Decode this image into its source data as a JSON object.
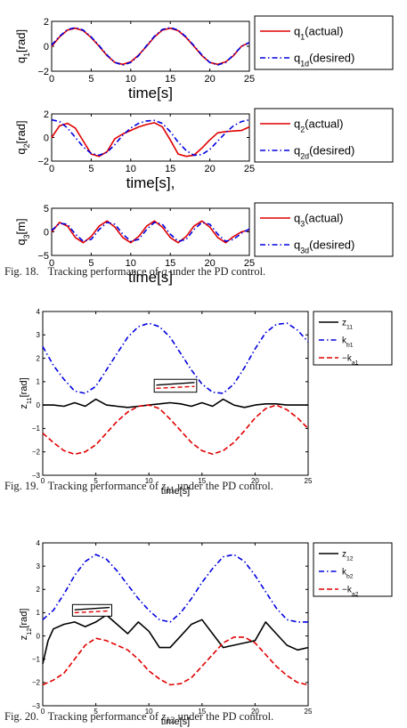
{
  "captions": {
    "fig18": {
      "label": "Fig. 18.",
      "pre": "Tracking performance of ",
      "var": "q",
      "sub": "",
      "post": " under the PD control."
    },
    "fig19": {
      "label": "Fig. 19.",
      "pre": "Tracking performance of ",
      "var": "z",
      "sub": "11",
      "post": " under the PD control."
    },
    "fig20": {
      "label": "Fig. 20.",
      "pre": "Tracking performance of ",
      "var": "z",
      "sub": "12",
      "post": " under the PD control."
    }
  },
  "chart_data": [
    {
      "id": "q1",
      "type": "line",
      "xlabel": "time[s]",
      "ylabel": {
        "base": "q",
        "sub": "1",
        "unit": "[rad]"
      },
      "xlim": [
        0,
        25
      ],
      "ylim": [
        -2,
        2
      ],
      "xticks": [
        "0",
        "5",
        "10",
        "15",
        "20",
        "25"
      ],
      "yticks": [
        "−2",
        "0",
        "2"
      ],
      "series": [
        {
          "name": {
            "base": "q",
            "sub": "1",
            "rest": "(actual)"
          },
          "color": "#e00000",
          "dash": "solid",
          "x": [
            0,
            1,
            2,
            3,
            4,
            5,
            6,
            7,
            8,
            9,
            10,
            11,
            12,
            13,
            14,
            15,
            16,
            17,
            18,
            19,
            20,
            21,
            22,
            23,
            24,
            25
          ],
          "y": [
            0,
            0.75,
            1.3,
            1.45,
            1.25,
            0.7,
            0,
            -0.75,
            -1.3,
            -1.45,
            -1.25,
            -0.7,
            0,
            0.75,
            1.3,
            1.45,
            1.25,
            0.7,
            0,
            -0.75,
            -1.3,
            -1.45,
            -1.25,
            -0.75,
            0,
            0.3
          ]
        },
        {
          "name": {
            "base": "q",
            "sub": "1d",
            "rest": "(desired)"
          },
          "color": "#0000e0",
          "dash": "dashdot",
          "x": [
            0,
            1,
            2,
            3,
            4,
            5,
            6,
            7,
            8,
            9,
            10,
            11,
            12,
            13,
            14,
            15,
            16,
            17,
            18,
            19,
            20,
            21,
            22,
            23,
            24,
            25
          ],
          "y": [
            0.1,
            0.8,
            1.35,
            1.5,
            1.3,
            0.75,
            0.05,
            -0.7,
            -1.3,
            -1.5,
            -1.3,
            -0.75,
            0.05,
            0.8,
            1.35,
            1.5,
            1.3,
            0.75,
            0.05,
            -0.7,
            -1.3,
            -1.5,
            -1.3,
            -0.7,
            0,
            0.3
          ]
        }
      ]
    },
    {
      "id": "q2",
      "type": "line",
      "xlabel": "time[s],",
      "ylabel": {
        "base": "q",
        "sub": "2",
        "unit": "[rad]"
      },
      "xlim": [
        0,
        25
      ],
      "ylim": [
        -2,
        2
      ],
      "xticks": [
        "0",
        "5",
        "10",
        "15",
        "20",
        "25"
      ],
      "yticks": [
        "−2",
        "0",
        "2"
      ],
      "series": [
        {
          "name": {
            "base": "q",
            "sub": "2",
            "rest": "(actual)"
          },
          "color": "#e00000",
          "dash": "solid",
          "x": [
            0,
            1,
            2,
            3,
            4,
            5,
            6,
            7,
            8,
            9,
            10,
            11,
            12,
            13,
            14,
            15,
            16,
            17,
            18,
            19,
            20,
            21,
            22,
            23,
            24,
            25
          ],
          "y": [
            0,
            1.0,
            1.2,
            0.8,
            -0.3,
            -1.4,
            -1.6,
            -1.2,
            -0.1,
            0.3,
            0.6,
            0.9,
            1.1,
            1.25,
            0.9,
            -0.2,
            -1.4,
            -1.6,
            -1.5,
            -0.9,
            -0.2,
            0.4,
            0.5,
            0.55,
            0.6,
            0.9
          ]
        },
        {
          "name": {
            "base": "q",
            "sub": "2d",
            "rest": "(desired)"
          },
          "color": "#0000e0",
          "dash": "dashdot",
          "x": [
            0,
            1,
            2,
            3,
            4,
            5,
            6,
            7,
            8,
            9,
            10,
            11,
            12,
            13,
            14,
            15,
            16,
            17,
            18,
            19,
            20,
            21,
            22,
            23,
            24,
            25
          ],
          "y": [
            1.5,
            1.35,
            0.8,
            0,
            -0.8,
            -1.35,
            -1.5,
            -1.25,
            -0.6,
            0.2,
            0.8,
            1.2,
            1.4,
            1.45,
            1.2,
            0.5,
            -0.4,
            -1.1,
            -1.5,
            -1.45,
            -1.0,
            -0.3,
            0.4,
            1.0,
            1.35,
            1.5
          ]
        }
      ]
    },
    {
      "id": "q3",
      "type": "line",
      "xlabel": "time[s]",
      "ylabel": {
        "base": "q",
        "sub": "3",
        "unit": "[m]"
      },
      "xlim": [
        0,
        25
      ],
      "ylim": [
        -5,
        5
      ],
      "xticks": [
        "0",
        "5",
        "10",
        "15",
        "20",
        "25"
      ],
      "yticks": [
        "−5",
        "0",
        "5"
      ],
      "series": [
        {
          "name": {
            "base": "q",
            "sub": "3",
            "rest": "(actual)"
          },
          "color": "#e00000",
          "dash": "solid",
          "x": [
            0,
            1,
            2,
            3,
            4,
            5,
            6,
            7,
            8,
            9,
            10,
            11,
            12,
            13,
            14,
            15,
            16,
            17,
            18,
            19,
            20,
            21,
            22,
            23,
            24,
            25
          ],
          "y": [
            0,
            2.0,
            1.2,
            -1.2,
            -2.3,
            -1.0,
            1.2,
            2.3,
            1.0,
            -1.2,
            -2.3,
            -1.0,
            1.2,
            2.3,
            1.0,
            -1.2,
            -2.3,
            -1.0,
            1.2,
            2.3,
            1.0,
            -1.2,
            -2.3,
            -1.0,
            0,
            0.4
          ]
        },
        {
          "name": {
            "base": "q",
            "sub": "3d",
            "rest": "(desired)"
          },
          "color": "#0000e0",
          "dash": "dashdot",
          "x": [
            0,
            1,
            2,
            3,
            4,
            5,
            6,
            7,
            8,
            9,
            10,
            11,
            12,
            13,
            14,
            15,
            16,
            17,
            18,
            19,
            20,
            21,
            22,
            23,
            24,
            25
          ],
          "y": [
            0.3,
            1.8,
            1.6,
            -0.5,
            -2.0,
            -1.6,
            0.5,
            2.0,
            1.6,
            -0.5,
            -2.0,
            -1.6,
            0.5,
            2.0,
            1.6,
            -0.5,
            -2.0,
            -1.6,
            0.5,
            2.0,
            1.6,
            -0.5,
            -2.0,
            -1.6,
            -0.3,
            0.6
          ]
        }
      ]
    },
    {
      "id": "z11",
      "type": "line",
      "xlabel": "time[s]",
      "ylabel": {
        "base": "z",
        "sub": "11",
        "unit": "[rad]"
      },
      "xlim": [
        0,
        25
      ],
      "ylim": [
        -3,
        4
      ],
      "xticks": [
        "0",
        "5",
        "10",
        "15",
        "20",
        "25"
      ],
      "yticks": [
        "−3",
        "−2",
        "−1",
        "0",
        "1",
        "2",
        "3",
        "4"
      ],
      "series": [
        {
          "name": {
            "base": "z",
            "sub": "11",
            "rest": ""
          },
          "color": "#000000",
          "dash": "solid",
          "x": [
            0,
            1,
            2,
            3,
            4,
            5,
            6,
            7,
            8,
            9,
            10,
            11,
            12,
            13,
            14,
            15,
            16,
            17,
            18,
            19,
            20,
            21,
            22,
            23,
            24,
            25
          ],
          "y": [
            0,
            0,
            -0.05,
            0.1,
            -0.05,
            0.25,
            0,
            -0.05,
            -0.1,
            -0.05,
            0,
            0.05,
            0.1,
            0.05,
            -0.05,
            0.1,
            -0.05,
            0.25,
            0,
            -0.1,
            0,
            0.05,
            0.05,
            0,
            0,
            0
          ]
        },
        {
          "name": {
            "base": "k",
            "sub": "b1",
            "rest": ""
          },
          "color": "#0000e0",
          "dash": "dashdot",
          "x": [
            0,
            1,
            2,
            3,
            4,
            5,
            6,
            7,
            8,
            9,
            10,
            11,
            12,
            13,
            14,
            15,
            16,
            17,
            18,
            19,
            20,
            21,
            22,
            23,
            24,
            25
          ],
          "y": [
            2.5,
            1.7,
            1.1,
            0.6,
            0.5,
            0.8,
            1.5,
            2.2,
            2.9,
            3.35,
            3.5,
            3.35,
            2.9,
            2.2,
            1.5,
            0.9,
            0.55,
            0.5,
            0.9,
            1.6,
            2.4,
            3.1,
            3.45,
            3.5,
            3.2,
            2.7
          ]
        },
        {
          "name": {
            "base": "−k",
            "sub": "a1",
            "rest": ""
          },
          "color": "#e00000",
          "dash": "dash",
          "x": [
            0,
            1,
            2,
            3,
            4,
            5,
            6,
            7,
            8,
            9,
            10,
            11,
            12,
            13,
            14,
            15,
            16,
            17,
            18,
            19,
            20,
            21,
            22,
            23,
            24,
            25
          ],
          "y": [
            -1.2,
            -1.6,
            -1.95,
            -2.1,
            -2.0,
            -1.7,
            -1.2,
            -0.7,
            -0.3,
            -0.05,
            0,
            -0.15,
            -0.6,
            -1.1,
            -1.6,
            -1.95,
            -2.1,
            -1.95,
            -1.6,
            -1.1,
            -0.55,
            -0.15,
            0,
            -0.2,
            -0.55,
            -1.0
          ]
        }
      ]
    },
    {
      "id": "z12",
      "type": "line",
      "xlabel": "time[s]",
      "ylabel": {
        "base": "z",
        "sub": "12",
        "unit": "[rad]"
      },
      "xlim": [
        0,
        25
      ],
      "ylim": [
        -3,
        4
      ],
      "xticks": [
        "0",
        "5",
        "10",
        "15",
        "20",
        "25"
      ],
      "yticks": [
        "−3",
        "−2",
        "−1",
        "0",
        "1",
        "2",
        "3",
        "4"
      ],
      "series": [
        {
          "name": {
            "base": "z",
            "sub": "12",
            "rest": ""
          },
          "color": "#000000",
          "dash": "solid",
          "x": [
            0,
            0.5,
            1,
            2,
            3,
            4,
            5,
            6,
            7,
            8,
            9,
            10,
            11,
            12,
            13,
            14,
            15,
            16,
            17,
            18,
            19,
            20,
            21,
            22,
            23,
            24,
            25
          ],
          "y": [
            -1.2,
            -0.2,
            0.3,
            0.5,
            0.6,
            0.4,
            0.6,
            0.9,
            0.5,
            0.1,
            0.6,
            0.2,
            -0.5,
            -0.5,
            0,
            0.5,
            0.7,
            0.1,
            -0.5,
            -0.4,
            -0.3,
            -0.2,
            0.6,
            0.1,
            -0.4,
            -0.6,
            -0.5
          ]
        },
        {
          "name": {
            "base": "k",
            "sub": "b2",
            "rest": ""
          },
          "color": "#0000e0",
          "dash": "dashdot",
          "x": [
            0,
            1,
            2,
            3,
            4,
            5,
            6,
            7,
            8,
            9,
            10,
            11,
            12,
            13,
            14,
            15,
            16,
            17,
            18,
            19,
            20,
            21,
            22,
            23,
            24,
            25
          ],
          "y": [
            0.7,
            1.1,
            1.8,
            2.6,
            3.2,
            3.5,
            3.3,
            2.8,
            2.2,
            1.6,
            1.1,
            0.7,
            0.6,
            1.0,
            1.6,
            2.3,
            2.9,
            3.4,
            3.5,
            3.2,
            2.6,
            1.9,
            1.2,
            0.7,
            0.6,
            0.6
          ]
        },
        {
          "name": {
            "base": "−k",
            "sub": "a2",
            "rest": ""
          },
          "color": "#e00000",
          "dash": "dash",
          "x": [
            0,
            1,
            2,
            3,
            4,
            5,
            6,
            7,
            8,
            9,
            10,
            11,
            12,
            13,
            14,
            15,
            16,
            17,
            18,
            19,
            20,
            21,
            22,
            23,
            24,
            25
          ],
          "y": [
            -2.1,
            -1.9,
            -1.6,
            -1.0,
            -0.4,
            -0.1,
            -0.2,
            -0.4,
            -0.6,
            -1.0,
            -1.5,
            -1.85,
            -2.1,
            -2.05,
            -1.8,
            -1.3,
            -0.8,
            -0.3,
            -0.05,
            -0.05,
            -0.3,
            -0.8,
            -1.3,
            -1.7,
            -2.0,
            -2.1
          ]
        }
      ]
    }
  ]
}
